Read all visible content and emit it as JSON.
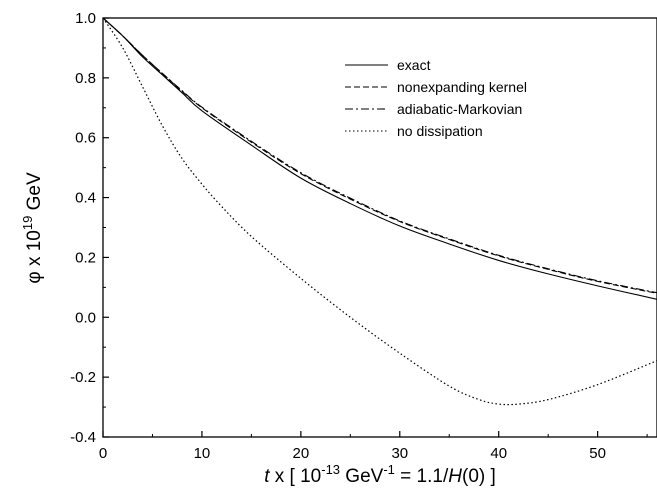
{
  "chart_data": {
    "type": "line",
    "title": "",
    "xlabel_parts": {
      "var": "t",
      "pre": " x [ 10",
      "exp1": "-13",
      "mid": " GeV",
      "exp2": "-1",
      "post": " = 1.1/",
      "hvar": "H",
      "tail": "(0) ]"
    },
    "ylabel_parts": {
      "pre": "φ x 10",
      "exp": "19",
      "post": " GeV"
    },
    "xlim": [
      0,
      56
    ],
    "ylim": [
      -0.4,
      1.0
    ],
    "x_ticks": [
      0,
      10,
      20,
      30,
      40,
      50
    ],
    "y_ticks": [
      -0.4,
      -0.2,
      0.0,
      0.2,
      0.4,
      0.6,
      0.8,
      1.0
    ],
    "x_tick_labels": [
      "0",
      "10",
      "20",
      "30",
      "40",
      "50"
    ],
    "y_tick_labels": [
      "-0.4",
      "-0.2",
      "0.0",
      "0.2",
      "0.4",
      "0.6",
      "0.8",
      "1.0"
    ],
    "grid": false,
    "legend_position": "top-right",
    "series": [
      {
        "name": "exact",
        "dash": "solid",
        "x": [
          0,
          2,
          4,
          6,
          8,
          10,
          15,
          20,
          25,
          30,
          35,
          40,
          45,
          50,
          56
        ],
        "y": [
          1.0,
          0.94,
          0.87,
          0.81,
          0.75,
          0.69,
          0.575,
          0.465,
          0.38,
          0.305,
          0.245,
          0.19,
          0.145,
          0.105,
          0.06
        ]
      },
      {
        "name": "nonexpanding kernel",
        "dash": "dashed",
        "x": [
          0,
          2,
          4,
          6,
          8,
          10,
          15,
          20,
          25,
          30,
          35,
          40,
          45,
          50,
          56
        ],
        "y": [
          1.0,
          0.94,
          0.875,
          0.815,
          0.755,
          0.7,
          0.585,
          0.48,
          0.395,
          0.32,
          0.26,
          0.205,
          0.16,
          0.12,
          0.08
        ]
      },
      {
        "name": "adiabatic-Markovian",
        "dash": "dashdot",
        "x": [
          0,
          2,
          4,
          6,
          8,
          10,
          15,
          20,
          25,
          30,
          35,
          40,
          45,
          50,
          56
        ],
        "y": [
          1.0,
          0.94,
          0.875,
          0.815,
          0.757,
          0.702,
          0.588,
          0.483,
          0.398,
          0.322,
          0.262,
          0.207,
          0.162,
          0.122,
          0.082
        ]
      },
      {
        "name": "no dissipation",
        "dash": "dotted",
        "x": [
          0,
          2,
          4,
          6,
          8,
          10,
          12,
          15,
          20,
          25,
          30,
          35,
          38,
          40,
          42,
          45,
          50,
          56
        ],
        "y": [
          1.0,
          0.9,
          0.77,
          0.64,
          0.53,
          0.445,
          0.37,
          0.27,
          0.13,
          0.0,
          -0.12,
          -0.23,
          -0.275,
          -0.29,
          -0.29,
          -0.275,
          -0.225,
          -0.145
        ]
      }
    ]
  }
}
